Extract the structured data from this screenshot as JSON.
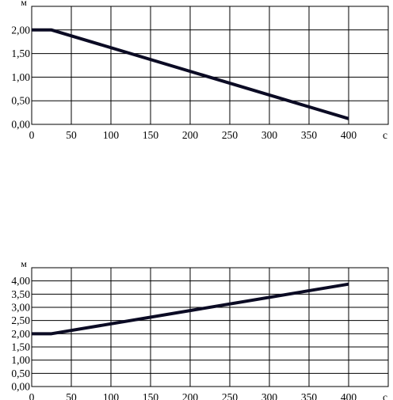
{
  "chart_data": [
    {
      "type": "line",
      "ylabel": "м",
      "xlabel": "с",
      "x_ticks": [
        "0",
        "50",
        "100",
        "150",
        "200",
        "250",
        "300",
        "350",
        "400"
      ],
      "y_ticks": [
        "0,00",
        "0,50",
        "1,00",
        "1,50",
        "2,00"
      ],
      "xlim": [
        0,
        450
      ],
      "ylim": [
        0,
        2.5
      ],
      "grid": true,
      "series": [
        {
          "x": [
            0,
            25,
            400
          ],
          "y": [
            2.0,
            2.0,
            0.12
          ]
        }
      ]
    },
    {
      "type": "line",
      "ylabel": "м",
      "xlabel": "с",
      "x_ticks": [
        "0",
        "50",
        "100",
        "150",
        "200",
        "250",
        "300",
        "350",
        "400"
      ],
      "y_ticks": [
        "0,00",
        "0,50",
        "1,00",
        "1,50",
        "2,00",
        "2,50",
        "3,00",
        "3,50",
        "4,00"
      ],
      "xlim": [
        0,
        450
      ],
      "ylim": [
        0,
        4.5
      ],
      "grid": true,
      "series": [
        {
          "x": [
            0,
            25,
            400
          ],
          "y": [
            2.0,
            2.0,
            3.88
          ]
        }
      ]
    }
  ]
}
